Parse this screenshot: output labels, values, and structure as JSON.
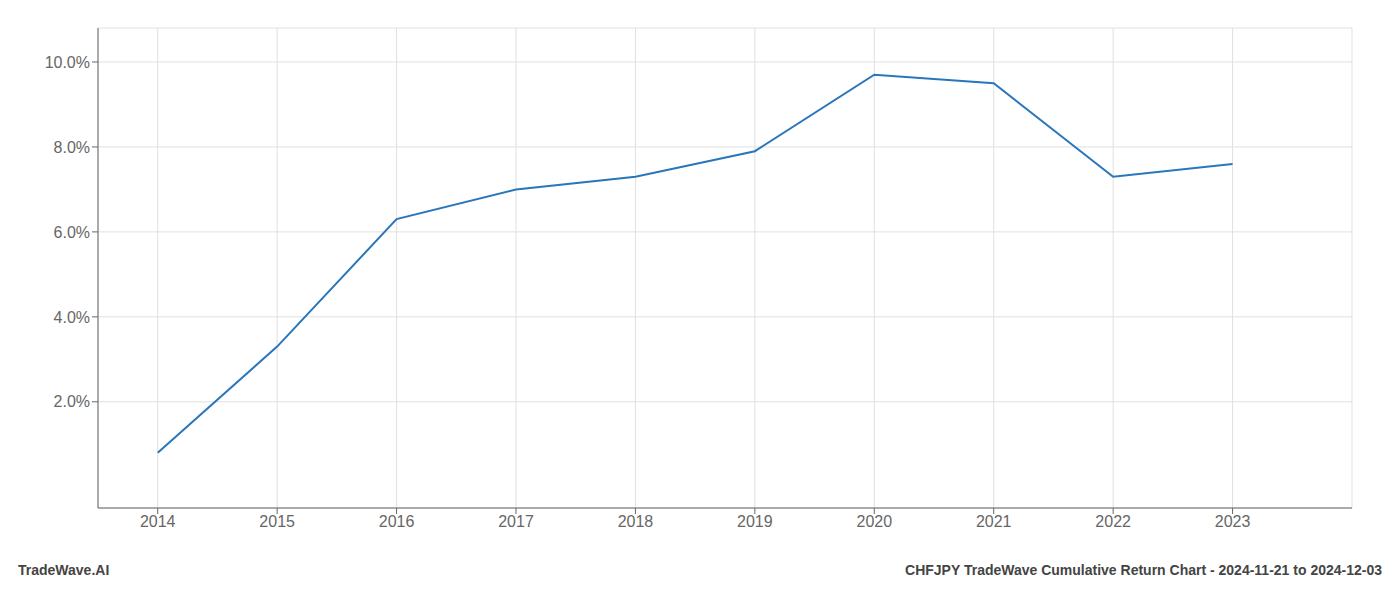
{
  "chart_data": {
    "type": "line",
    "x": [
      2014,
      2015,
      2016,
      2017,
      2018,
      2019,
      2020,
      2021,
      2022,
      2023
    ],
    "values": [
      0.008,
      0.033,
      0.063,
      0.07,
      0.073,
      0.079,
      0.097,
      0.095,
      0.073,
      0.076
    ],
    "color": "#2976bb",
    "xlim": [
      2013.5,
      2024.0
    ],
    "ylim": [
      -0.005,
      0.108
    ],
    "xticks": [
      2014,
      2015,
      2016,
      2017,
      2018,
      2019,
      2020,
      2021,
      2022,
      2023
    ],
    "yticks": [
      {
        "value": 0.02,
        "label": "2.0%"
      },
      {
        "value": 0.04,
        "label": "4.0%"
      },
      {
        "value": 0.06,
        "label": "6.0%"
      },
      {
        "value": 0.08,
        "label": "8.0%"
      },
      {
        "value": 0.1,
        "label": "10.0%"
      }
    ],
    "grid": true,
    "annotations": [
      "TradeWave.AI",
      "CHFJPY TradeWave Cumulative Return Chart - 2024-11-21 to 2024-12-03"
    ]
  }
}
